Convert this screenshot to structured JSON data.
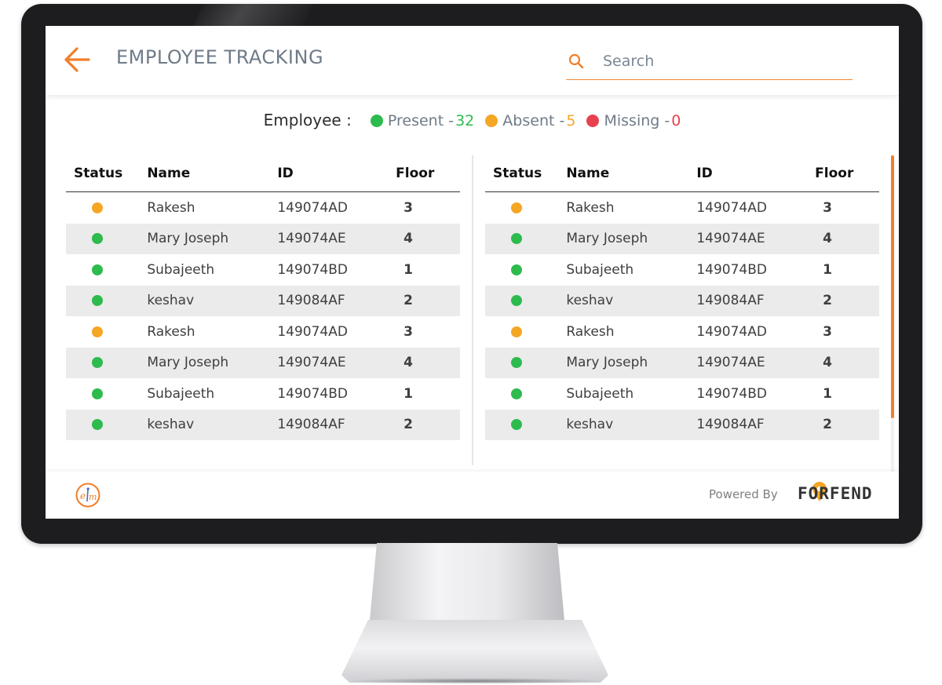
{
  "header": {
    "title": "EMPLOYEE TRACKING"
  },
  "search": {
    "placeholder": "Search"
  },
  "summary": {
    "label": "Employee :",
    "present_label": "Present -",
    "present_count": "32",
    "absent_label": "Absent -",
    "absent_count": "5",
    "missing_label": "Missing -",
    "missing_count": "0"
  },
  "table": {
    "columns": [
      "Status",
      "Name",
      "ID",
      "Floor"
    ],
    "rows": [
      {
        "status": "absent",
        "name": "Rakesh",
        "id": "149074AD",
        "floor": "3"
      },
      {
        "status": "present",
        "name": "Mary Joseph",
        "id": "149074AE",
        "floor": "4"
      },
      {
        "status": "present",
        "name": "Subajeeth",
        "id": "149074BD",
        "floor": "1"
      },
      {
        "status": "present",
        "name": "keshav",
        "id": "149084AF",
        "floor": "2"
      },
      {
        "status": "absent",
        "name": "Rakesh",
        "id": "149074AD",
        "floor": "3"
      },
      {
        "status": "present",
        "name": "Mary Joseph",
        "id": "149074AE",
        "floor": "4"
      },
      {
        "status": "present",
        "name": "Subajeeth",
        "id": "149074BD",
        "floor": "1"
      },
      {
        "status": "present",
        "name": "keshav",
        "id": "149084AF",
        "floor": "2"
      }
    ]
  },
  "footer": {
    "powered_by": "Powered By",
    "brand": "FORFEND"
  },
  "icons": {
    "back": "arrow-left-icon",
    "search": "search-icon",
    "logo": "em-logo-icon",
    "brand": "location-pin-icon"
  },
  "colors": {
    "accent": "#f07f2a",
    "present": "#2dbb4e",
    "absent": "#f5a623",
    "missing": "#e8414e",
    "title": "#6f7b88"
  }
}
